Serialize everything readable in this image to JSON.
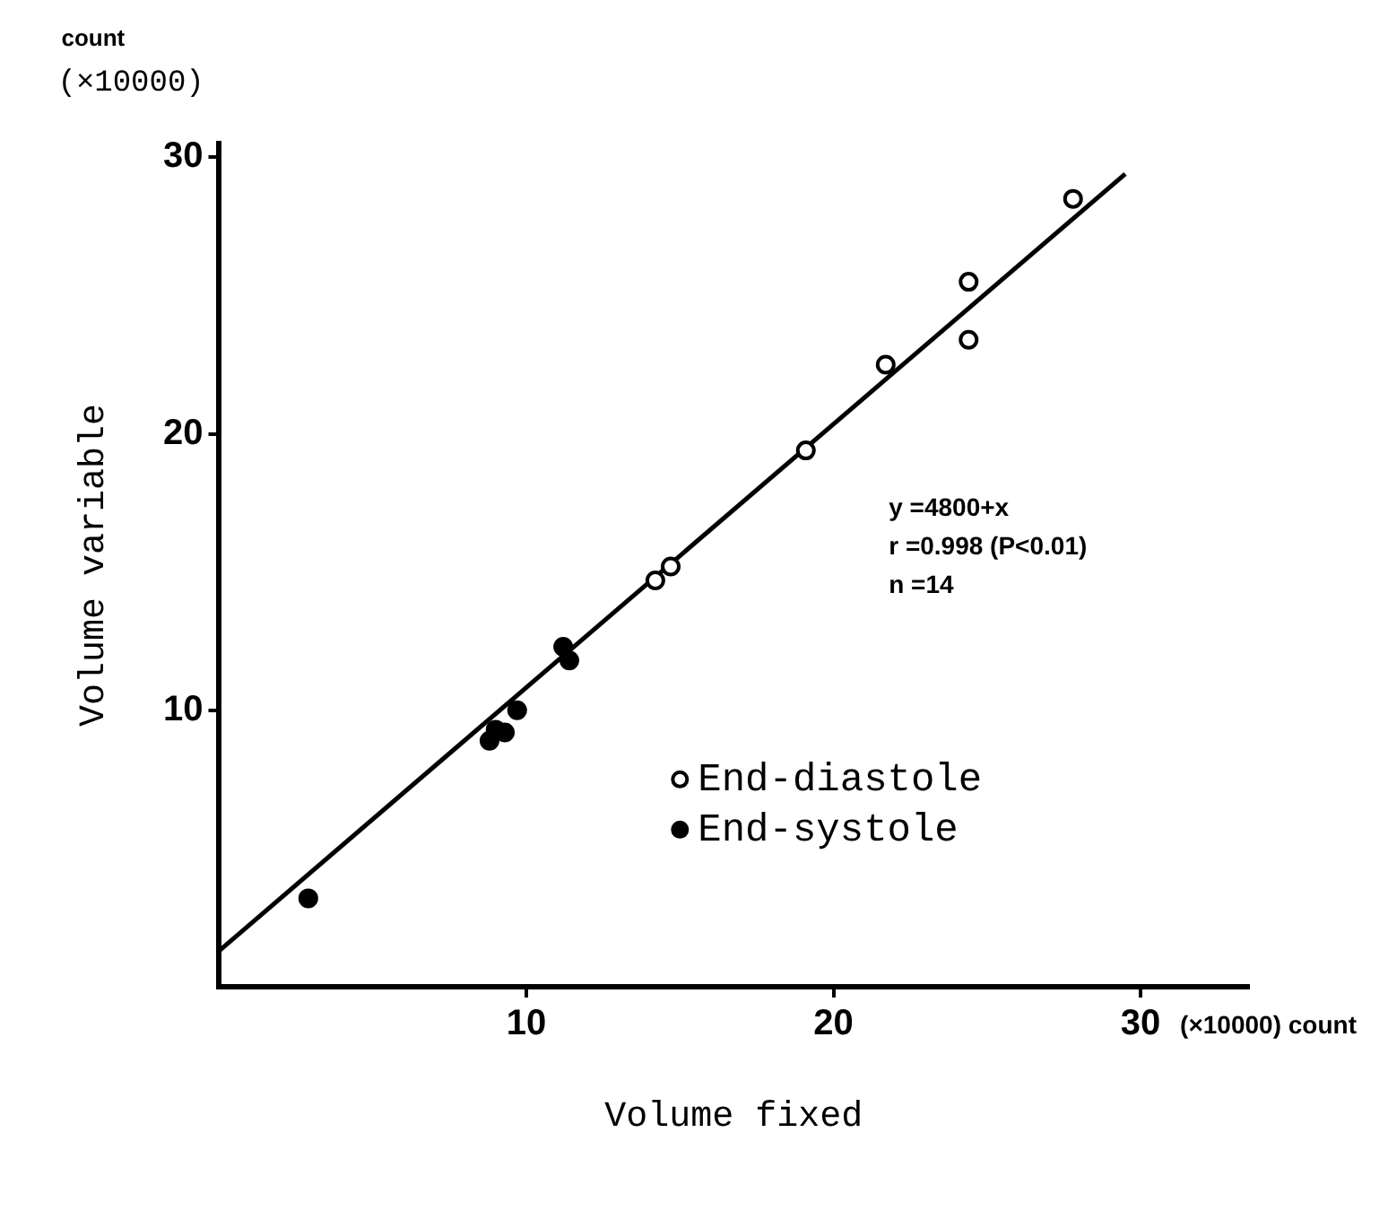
{
  "chart_data": {
    "type": "scatter",
    "xlabel": "Volume fixed",
    "ylabel": "Volume variable",
    "xlim": [
      0,
      33.5
    ],
    "ylim": [
      0,
      30.5
    ],
    "xticks": [
      10,
      20,
      30
    ],
    "yticks": [
      10,
      20,
      30
    ],
    "grid": false,
    "legend": "bottom",
    "marker": "circle",
    "annotations": [
      "count",
      "(×10000)",
      "(×10000) count",
      "y =4800+x",
      "r =0.998 (P<0.01)",
      "n =14"
    ],
    "series": [
      {
        "name": "End-diastole",
        "color": "#000000",
        "x": [
          27.8,
          24.4,
          24.4,
          21.7,
          19.1,
          14.7,
          14.2
        ],
        "values": [
          28.5,
          25.5,
          23.4,
          22.5,
          19.4,
          15.2,
          14.7
        ]
      },
      {
        "name": "End-systole",
        "color": "#000000",
        "x": [
          2.9,
          8.8,
          9.0,
          9.3,
          9.7,
          11.2,
          11.4
        ],
        "values": [
          3.2,
          8.9,
          9.3,
          9.2,
          10.0,
          12.3,
          11.8
        ]
      },
      {
        "type": "line",
        "color": "#000000",
        "marker": "none",
        "x": [
          0,
          29.5
        ],
        "values": [
          1.3,
          29.4
        ]
      }
    ]
  }
}
